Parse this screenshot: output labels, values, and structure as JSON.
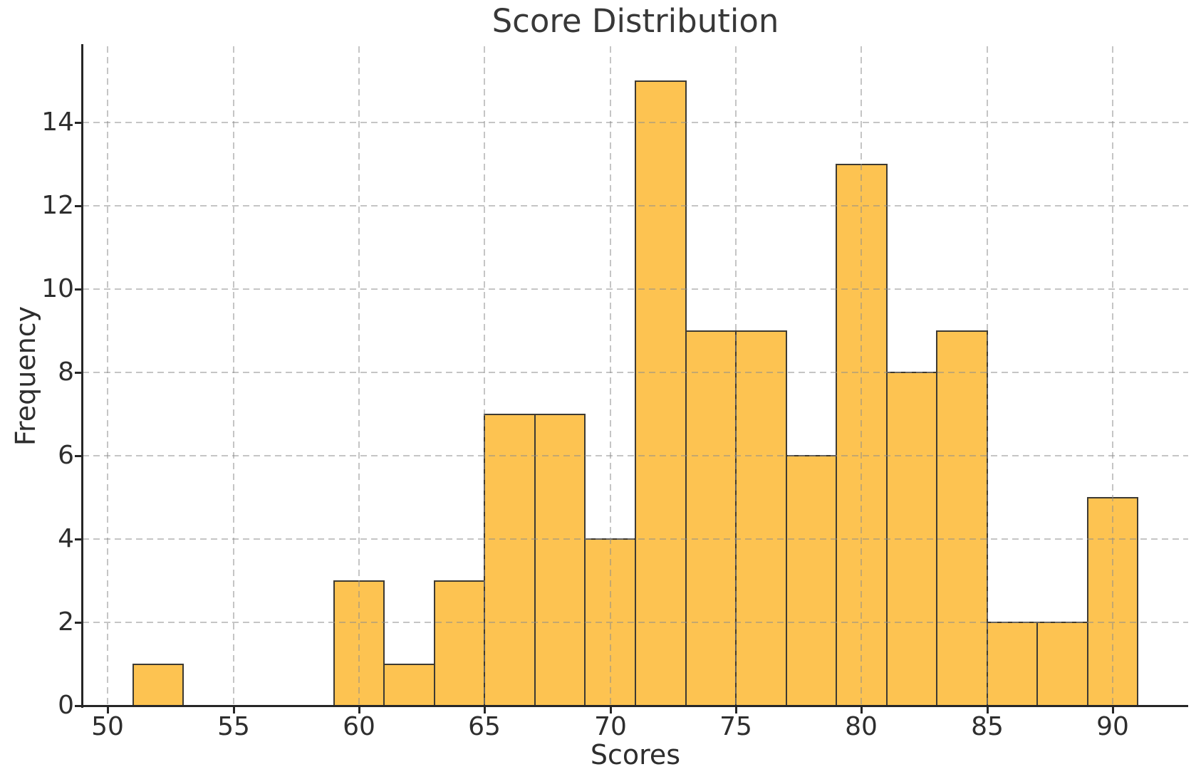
{
  "chart_data": {
    "type": "histogram",
    "title": "Score Distribution",
    "xlabel": "Scores",
    "ylabel": "Frequency",
    "bins": [
      {
        "start": 51,
        "end": 53,
        "count": 1
      },
      {
        "start": 59,
        "end": 61,
        "count": 3
      },
      {
        "start": 61,
        "end": 63,
        "count": 1
      },
      {
        "start": 63,
        "end": 65,
        "count": 3
      },
      {
        "start": 65,
        "end": 67,
        "count": 7
      },
      {
        "start": 67,
        "end": 69,
        "count": 7
      },
      {
        "start": 69,
        "end": 71,
        "count": 4
      },
      {
        "start": 71,
        "end": 73,
        "count": 15
      },
      {
        "start": 73,
        "end": 75,
        "count": 9
      },
      {
        "start": 75,
        "end": 77,
        "count": 9
      },
      {
        "start": 77,
        "end": 79,
        "count": 6
      },
      {
        "start": 79,
        "end": 81,
        "count": 13
      },
      {
        "start": 81,
        "end": 83,
        "count": 8
      },
      {
        "start": 83,
        "end": 85,
        "count": 9
      },
      {
        "start": 85,
        "end": 87,
        "count": 2
      },
      {
        "start": 87,
        "end": 89,
        "count": 2
      },
      {
        "start": 89,
        "end": 91,
        "count": 5
      }
    ],
    "x_ticks": [
      50,
      55,
      60,
      65,
      70,
      75,
      80,
      85,
      90
    ],
    "y_ticks": [
      0,
      2,
      4,
      6,
      8,
      10,
      12,
      14
    ],
    "xlim": [
      49,
      93
    ],
    "ylim": [
      0,
      15.83
    ],
    "grid": "dashed",
    "legend": null,
    "colors": {
      "bar_fill": "#FDC351",
      "bar_edge": "#3D3A33",
      "grid": "#CCCCCC",
      "spine": "#262626",
      "text": "#2E2E2E",
      "title_text": "#383838",
      "background": "#FFFFFF"
    }
  }
}
